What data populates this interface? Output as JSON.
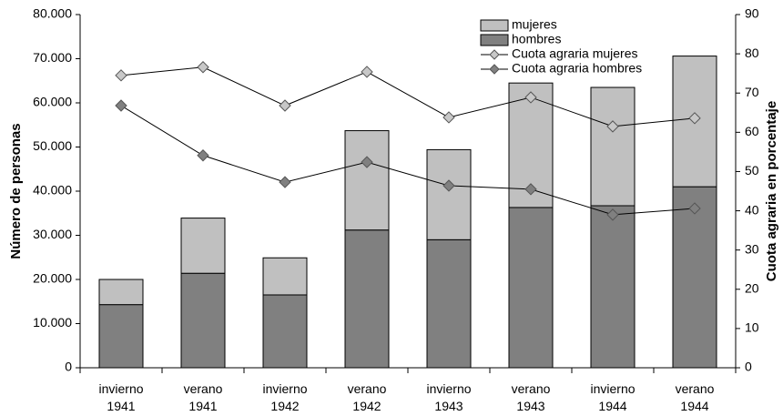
{
  "chart_data": {
    "type": "bar",
    "stacked": true,
    "y_label": "Número de personas",
    "y2_label": "Cuota agraria en porcentaje",
    "categories": [
      "invierno 1941",
      "verano 1941",
      "invierno 1942",
      "verano 1942",
      "invierno 1943",
      "verano 1943",
      "invierno 1944",
      "verano 1944"
    ],
    "series": [
      {
        "name": "mujeres",
        "type": "bar",
        "color": "#c0c0c0",
        "values": [
          5700,
          12500,
          8400,
          22500,
          20400,
          28200,
          26800,
          29600
        ]
      },
      {
        "name": "hombres",
        "type": "bar",
        "color": "#808080",
        "values": [
          14300,
          21400,
          16500,
          31200,
          29000,
          36300,
          36700,
          41000
        ]
      },
      {
        "name": "Cuota agraria mujeres",
        "type": "line",
        "axis": "y2",
        "color": "#c8c8c8",
        "values": [
          74.5,
          76.6,
          66.8,
          75.4,
          63.8,
          68.9,
          61.5,
          63.6
        ]
      },
      {
        "name": "Cuota agraria hombres",
        "type": "line",
        "axis": "y2",
        "color": "#808080",
        "values": [
          66.8,
          54.1,
          47.3,
          52.4,
          46.4,
          45.5,
          39,
          40.6
        ]
      }
    ],
    "ylim": [
      0,
      80000
    ],
    "yticks": [
      0,
      {
        "value": 10000,
        "label": "10.000"
      },
      {
        "value": 20000,
        "label": "20.000"
      },
      {
        "value": 30000,
        "label": "30.000"
      },
      {
        "value": 40000,
        "label": "40.000"
      },
      {
        "value": 50000,
        "label": "50.000"
      },
      {
        "value": 60000,
        "label": "60.000"
      },
      {
        "value": 70000,
        "label": "70.000"
      },
      {
        "value": 80000,
        "label": "80.000"
      }
    ],
    "y2lim": [
      0,
      90
    ],
    "y2ticks": [
      0,
      10,
      20,
      30,
      40,
      50,
      60,
      70,
      80,
      90
    ],
    "grid": false,
    "legend": "top-right"
  }
}
